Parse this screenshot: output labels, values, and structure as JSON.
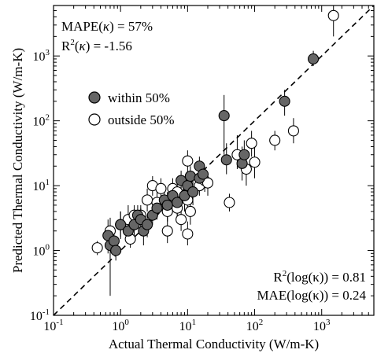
{
  "chart_data": {
    "type": "scatter",
    "xlabel": "Actual Thermal Conductivity (W/m-K)",
    "ylabel": "Predicted Thermal Conductivity (W/m-K)",
    "xscale": "log",
    "yscale": "log",
    "xlim": [
      0.1,
      6000
    ],
    "ylim": [
      0.1,
      6000
    ],
    "x_major_ticks": [
      0.1,
      1,
      10,
      100,
      1000
    ],
    "y_major_ticks": [
      0.1,
      1,
      10,
      100,
      1000
    ],
    "x_tick_labels": [
      {
        "base": "10",
        "exp": "-1"
      },
      {
        "base": "10",
        "exp": "0"
      },
      {
        "base": "10",
        "exp": "1"
      },
      {
        "base": "10",
        "exp": "2"
      },
      {
        "base": "10",
        "exp": "3"
      }
    ],
    "y_tick_labels": [
      {
        "base": "10",
        "exp": "-1"
      },
      {
        "base": "10",
        "exp": "0"
      },
      {
        "base": "10",
        "exp": "1"
      },
      {
        "base": "10",
        "exp": "2"
      },
      {
        "base": "10",
        "exp": "3"
      }
    ],
    "parity_line": {
      "style": "dashed",
      "relation": "y = x"
    },
    "annotations": {
      "mape": {
        "prefix": "MAPE(",
        "kappa": "κ",
        "suffix": ") = 57%"
      },
      "r2": {
        "prefix": "R",
        "sup": "2",
        "mid": "(",
        "kappa": "κ",
        "suffix": ") = -1.56"
      },
      "r2_log": {
        "prefix": "R",
        "sup": "2",
        "suffix": "(log(κ)) = 0.81"
      },
      "mae_log": {
        "text": "MAE(log(κ)) = 0.24"
      }
    },
    "legend": {
      "placement": "upper-left",
      "entries": [
        {
          "label": "within 50%",
          "fill": "#666666"
        },
        {
          "label": "outside 50%",
          "fill": "#ffffff"
        }
      ]
    },
    "series": [
      {
        "name": "within 50%",
        "fill": "#666666",
        "points": [
          {
            "x": 0.65,
            "y": 1.7,
            "lo": 0.9,
            "hi": 3.0
          },
          {
            "x": 0.7,
            "y": 1.2,
            "lo": 0.2,
            "hi": 2.0
          },
          {
            "x": 0.8,
            "y": 1.4,
            "lo": 0.9,
            "hi": 2.0
          },
          {
            "x": 0.85,
            "y": 1.0,
            "lo": 0.7,
            "hi": 1.5
          },
          {
            "x": 1.0,
            "y": 2.5,
            "lo": 1.5,
            "hi": 4.0
          },
          {
            "x": 1.3,
            "y": 2.0,
            "lo": 1.3,
            "hi": 3.0
          },
          {
            "x": 1.6,
            "y": 2.5,
            "lo": 1.5,
            "hi": 4.0
          },
          {
            "x": 1.8,
            "y": 3.5,
            "lo": 2.5,
            "hi": 5.0
          },
          {
            "x": 2.0,
            "y": 3.0,
            "lo": 2.0,
            "hi": 4.5
          },
          {
            "x": 2.2,
            "y": 2.0,
            "lo": 1.2,
            "hi": 3.0
          },
          {
            "x": 2.5,
            "y": 2.5,
            "lo": 1.6,
            "hi": 3.5
          },
          {
            "x": 3.0,
            "y": 3.5,
            "lo": 2.5,
            "hi": 4.5
          },
          {
            "x": 3.5,
            "y": 4.5,
            "lo": 3.0,
            "hi": 7.0
          },
          {
            "x": 4.5,
            "y": 6.0,
            "lo": 4.0,
            "hi": 9.0
          },
          {
            "x": 5.0,
            "y": 5.0,
            "lo": 3.0,
            "hi": 8.0
          },
          {
            "x": 6.0,
            "y": 7.0,
            "lo": 4.5,
            "hi": 11.0
          },
          {
            "x": 7.0,
            "y": 5.5,
            "lo": 3.5,
            "hi": 9.0
          },
          {
            "x": 8.0,
            "y": 12.0,
            "lo": 8.0,
            "hi": 17.0
          },
          {
            "x": 9.0,
            "y": 7.0,
            "lo": 4.0,
            "hi": 12.0
          },
          {
            "x": 10.0,
            "y": 10.0,
            "lo": 6.0,
            "hi": 16.0
          },
          {
            "x": 11.0,
            "y": 14.0,
            "lo": 9.0,
            "hi": 20.0
          },
          {
            "x": 12.0,
            "y": 8.0,
            "lo": 5.0,
            "hi": 13.0
          },
          {
            "x": 15.0,
            "y": 13.0,
            "lo": 8.0,
            "hi": 20.0
          },
          {
            "x": 15.0,
            "y": 20.0,
            "lo": 14.0,
            "hi": 28.0
          },
          {
            "x": 17.0,
            "y": 15.0,
            "lo": 9.0,
            "hi": 23.0
          },
          {
            "x": 35.0,
            "y": 120.0,
            "lo": 30.0,
            "hi": 250.0
          },
          {
            "x": 38.0,
            "y": 25.0,
            "lo": 15.0,
            "hi": 45.0
          },
          {
            "x": 65.0,
            "y": 22.0,
            "lo": 12.0,
            "hi": 40.0
          },
          {
            "x": 70.0,
            "y": 30.0,
            "lo": 18.0,
            "hi": 50.0
          },
          {
            "x": 280.0,
            "y": 200.0,
            "lo": 120.0,
            "hi": 300.0
          },
          {
            "x": 750.0,
            "y": 900.0,
            "lo": 700.0,
            "hi": 1200.0
          }
        ]
      },
      {
        "name": "outside 50%",
        "fill": "#ffffff",
        "points": [
          {
            "x": 0.45,
            "y": 1.1,
            "lo": 0.85,
            "hi": 1.4
          },
          {
            "x": 0.7,
            "y": 2.0,
            "lo": 1.3,
            "hi": 3.2
          },
          {
            "x": 1.0,
            "y": 2.5,
            "lo": 1.6,
            "hi": 4.0
          },
          {
            "x": 1.3,
            "y": 3.0,
            "lo": 2.0,
            "hi": 5.0
          },
          {
            "x": 1.4,
            "y": 1.5,
            "lo": 1.1,
            "hi": 2.0
          },
          {
            "x": 1.6,
            "y": 3.5,
            "lo": 2.4,
            "hi": 5.0
          },
          {
            "x": 2.0,
            "y": 3.5,
            "lo": 2.4,
            "hi": 5.0
          },
          {
            "x": 2.5,
            "y": 6.0,
            "lo": 4.0,
            "hi": 9.0
          },
          {
            "x": 3.0,
            "y": 10.0,
            "lo": 7.0,
            "hi": 14.0
          },
          {
            "x": 3.5,
            "y": 5.5,
            "lo": 4.0,
            "hi": 8.0
          },
          {
            "x": 4.0,
            "y": 9.0,
            "lo": 6.0,
            "hi": 13.0
          },
          {
            "x": 5.0,
            "y": 2.0,
            "lo": 1.3,
            "hi": 3.0
          },
          {
            "x": 5.0,
            "y": 4.0,
            "lo": 2.8,
            "hi": 6.0
          },
          {
            "x": 5.5,
            "y": 6.0,
            "lo": 4.0,
            "hi": 9.0
          },
          {
            "x": 6.0,
            "y": 9.0,
            "lo": 6.0,
            "hi": 13.0
          },
          {
            "x": 7.0,
            "y": 8.0,
            "lo": 5.0,
            "hi": 12.0
          },
          {
            "x": 7.0,
            "y": 4.5,
            "lo": 3.0,
            "hi": 7.0
          },
          {
            "x": 8.0,
            "y": 3.0,
            "lo": 2.0,
            "hi": 4.5
          },
          {
            "x": 10.0,
            "y": 6.0,
            "lo": 4.0,
            "hi": 9.0
          },
          {
            "x": 10.0,
            "y": 1.8,
            "lo": 1.2,
            "hi": 2.8
          },
          {
            "x": 10.0,
            "y": 24.0,
            "lo": 16.0,
            "hi": 35.0
          },
          {
            "x": 11.0,
            "y": 4.0,
            "lo": 2.5,
            "hi": 6.0
          },
          {
            "x": 15.0,
            "y": 10.0,
            "lo": 7.0,
            "hi": 14.0
          },
          {
            "x": 18.0,
            "y": 12.0,
            "lo": 8.0,
            "hi": 17.0
          },
          {
            "x": 20.0,
            "y": 11.0,
            "lo": 7.0,
            "hi": 16.0
          },
          {
            "x": 42.0,
            "y": 5.5,
            "lo": 4.0,
            "hi": 7.5
          },
          {
            "x": 55.0,
            "y": 30.0,
            "lo": 18.0,
            "hi": 60.0
          },
          {
            "x": 75.0,
            "y": 18.0,
            "lo": 10.0,
            "hi": 30.0
          },
          {
            "x": 90.0,
            "y": 45.0,
            "lo": 28.0,
            "hi": 70.0
          },
          {
            "x": 100.0,
            "y": 23.0,
            "lo": 13.0,
            "hi": 40.0
          },
          {
            "x": 200.0,
            "y": 50.0,
            "lo": 35.0,
            "hi": 70.0
          },
          {
            "x": 380.0,
            "y": 70.0,
            "lo": 45.0,
            "hi": 110.0
          },
          {
            "x": 1500.0,
            "y": 4200.0,
            "lo": 2000.0,
            "hi": 6000.0
          }
        ]
      }
    ]
  }
}
